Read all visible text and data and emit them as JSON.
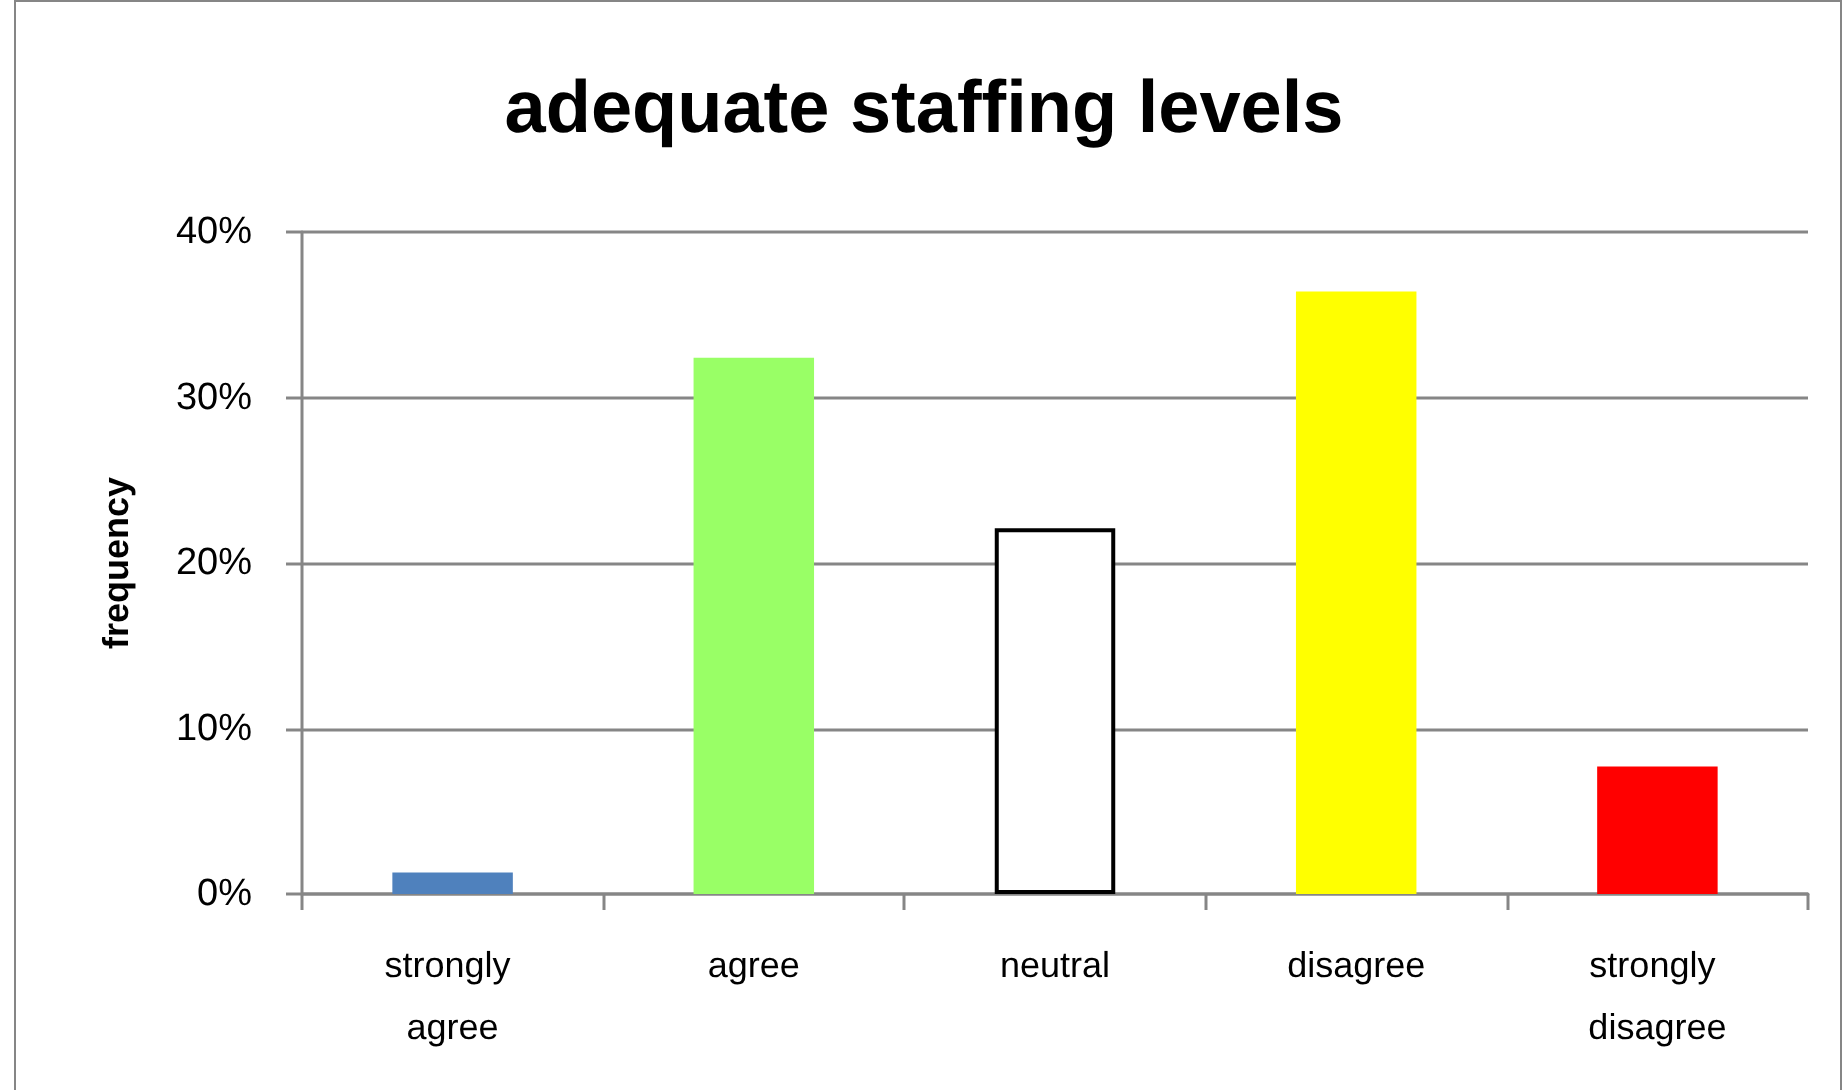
{
  "chart_data": {
    "type": "bar",
    "title": "adequate staffing levels",
    "ylabel": "frequency",
    "categories": [
      "strongly agree",
      "agree",
      "neutral",
      "disagree",
      "strongly disagree"
    ],
    "values": [
      1.3,
      32.4,
      22.1,
      36.4,
      7.7
    ],
    "colors": [
      "#4f81bd",
      "#99ff66",
      "#ffffff",
      "#ffff00",
      "#ff0000"
    ],
    "ylim": [
      0,
      40
    ],
    "yticks": [
      {
        "value": 0,
        "label": "0%"
      },
      {
        "value": 10,
        "label": "10%"
      },
      {
        "value": 20,
        "label": "20%"
      },
      {
        "value": 30,
        "label": "30%"
      },
      {
        "value": 40,
        "label": "40%"
      }
    ],
    "grid": "y"
  }
}
